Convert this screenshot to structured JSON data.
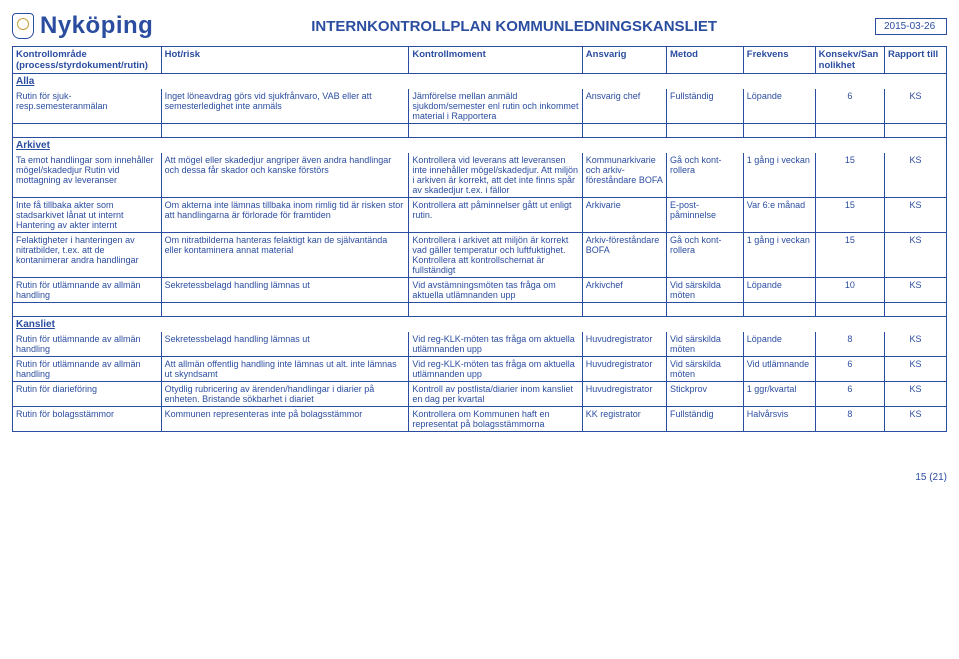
{
  "brand": "Nyköping",
  "doc_title": "INTERNKONTROLLPLAN KOMMUNLEDNINGSKANSLIET",
  "date": "2015-03-26",
  "footer": "15 (21)",
  "columns": {
    "area": "Kontrollområde\n(process/styrdokument/rutin)",
    "risk": "Hot/risk",
    "moment": "Kontrollmoment",
    "ansvarig": "Ansvarig",
    "metod": "Metod",
    "frekvens": "Frekvens",
    "konsekv": "Konsekv/Sannolikhet",
    "rapport": "Rapport till"
  },
  "sections": [
    {
      "name": "Alla",
      "rows": [
        {
          "area": "Rutin för sjuk-resp.semesteranmälan",
          "risk": "Inget löneavdrag görs vid sjukfrånvaro, VAB eller att semesterledighet inte anmäls",
          "moment": "Jämförelse mellan anmäld sjukdom/semester enl rutin och inkommet material i Rapportera",
          "ansvarig": "Ansvarig chef",
          "metod": "Fullständig",
          "frekvens": "Löpande",
          "konsekv": "6",
          "rapport": "KS"
        }
      ]
    },
    {
      "name": "Arkivet",
      "rows": [
        {
          "area": "Ta emot handlingar som innehåller mögel/skadedjur Rutin vid mottagning av leveranser",
          "risk": "Att mögel eller skadedjur angriper även andra handlingar och dessa får skador och kanske förstörs",
          "moment": "Kontrollera vid leverans att leveransen inte innehåller mögel/skadedjur. Att miljön i arkiven är korrekt, att det inte finns spår av skadedjur t.ex. i fällor",
          "ansvarig": "Kommunarkivarie och arkiv-föreståndare BOFA",
          "metod": "Gå och kont-rollera",
          "frekvens": "1 gång i veckan",
          "konsekv": "15",
          "rapport": "KS"
        },
        {
          "area": "Inte få tillbaka akter som stadsarkivet lånat ut internt Hantering av akter internt",
          "risk": "Om akterna inte lämnas tillbaka inom rimlig tid är risken stor att handlingarna är förlorade för framtiden",
          "moment": "Kontrollera att påminnelser gått ut enligt rutin.",
          "ansvarig": "Arkivarie",
          "metod": "E-post-påminnelse",
          "frekvens": "Var 6:e månad",
          "konsekv": "15",
          "rapport": "KS"
        },
        {
          "area": "Felaktigheter i hanteringen av nitratbilder, t.ex. att de kontanimerar andra handlingar",
          "risk": "Om nitratbilderna hanteras felaktigt kan de självantända eller kontaminera annat material",
          "moment": "Kontrollera i arkivet att miljön är korrekt vad gäller temperatur och luftfuktighet. Kontrollera att kontrollschemat är fullständigt",
          "ansvarig": "Arkiv-föreståndare BOFA",
          "metod": "Gå och kont-rollera",
          "frekvens": "1 gång i veckan",
          "konsekv": "15",
          "rapport": "KS"
        },
        {
          "area": "Rutin för utlämnande av allmän handling",
          "risk": "Sekretessbelagd handling lämnas ut",
          "moment": "Vid avstämningsmöten tas fråga om aktuella utlämnanden upp",
          "ansvarig": "Arkivchef",
          "metod": "Vid särskilda möten",
          "frekvens": "Löpande",
          "konsekv": "10",
          "rapport": "KS"
        }
      ]
    },
    {
      "name": "Kansliet",
      "rows": [
        {
          "area": "Rutin för utlämnande av allmän handling",
          "risk": "Sekretessbelagd handling lämnas ut",
          "moment": "Vid reg-KLK-möten tas fråga om aktuella utlämnanden upp",
          "ansvarig": "Huvudregistrator",
          "metod": "Vid särskilda möten",
          "frekvens": "Löpande",
          "konsekv": "8",
          "rapport": "KS"
        },
        {
          "area": "Rutin för utlämnande av allmän handling",
          "risk": "Att allmän offentlig handling inte lämnas ut alt. inte lämnas ut skyndsamt",
          "moment": "Vid reg-KLK-möten tas fråga om aktuella utlämnanden upp",
          "ansvarig": "Huvudregistrator",
          "metod": "Vid särskilda möten",
          "frekvens": "Vid utlämnande",
          "konsekv": "6",
          "rapport": "KS"
        },
        {
          "area": "Rutin för diarieföring",
          "risk": "Otydlig rubricering av ärenden/handlingar i diarier på enheten. Bristande sökbarhet i diariet",
          "moment": "Kontroll av postlista/diarier inom kansliet en dag per kvartal",
          "ansvarig": "Huvudregistrator",
          "metod": "Stickprov",
          "frekvens": "1 ggr/kvartal",
          "konsekv": "6",
          "rapport": "KS"
        },
        {
          "area": "Rutin för bolagsstämmor",
          "risk": "Kommunen representeras inte på bolagsstämmor",
          "moment": "Kontrollera om Kommunen haft en representat på bolagsstämmorna",
          "ansvarig": "KK registrator",
          "metod": "Fullständig",
          "frekvens": "Halvårsvis",
          "konsekv": "8",
          "rapport": "KS"
        }
      ]
    }
  ]
}
